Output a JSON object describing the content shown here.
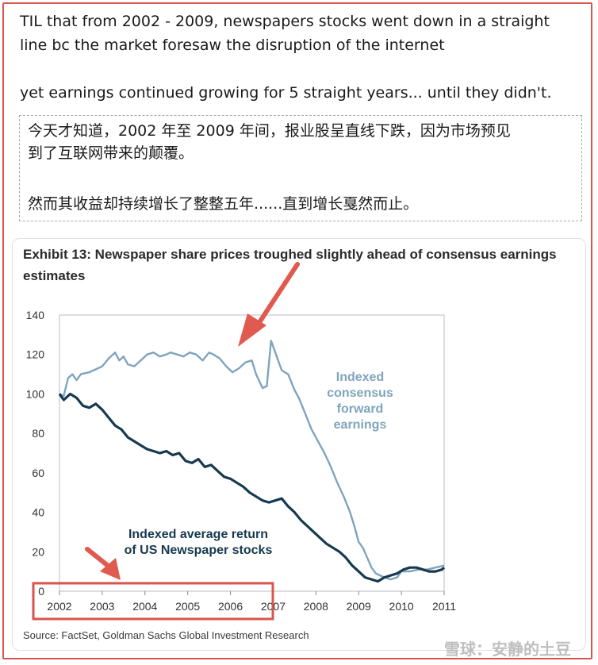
{
  "post": {
    "line1": "TIL that from 2002 - 2009, newspapers stocks went down in a straight",
    "line2": "line bc the market foresaw the disruption of the internet",
    "line3": "yet earnings continued growing for 5 straight years... until they didn't."
  },
  "translation": {
    "line1": "今天才知道，2002 年至 2009 年间，报业股呈直线下跌，因为市场预见",
    "line2": "到了互联网带来的颠覆。",
    "line3": "然而其收益却持续增长了整整五年......直到增长戛然而止。"
  },
  "chart_data": {
    "type": "line",
    "title": "Exhibit 13: Newspaper share prices troughed slightly ahead of consensus earnings estimates",
    "source": "Source: FactSet, Goldman Sachs Global Investment Research",
    "xlim": [
      2002,
      2011
    ],
    "ylim": [
      0,
      140
    ],
    "x_ticks": [
      "2002",
      "2003",
      "2004",
      "2005",
      "2006",
      "2007",
      "2008",
      "2009",
      "2010",
      "2011"
    ],
    "y_ticks": [
      "0",
      "20",
      "40",
      "60",
      "80",
      "100",
      "120",
      "140"
    ],
    "grid": false,
    "series": [
      {
        "name": "Indexed consensus forward earnings",
        "color": "#7fa4bd",
        "x": [
          2002.0,
          2002.1,
          2002.2,
          2002.3,
          2002.4,
          2002.5,
          2002.7,
          2002.9,
          2003.0,
          2003.15,
          2003.3,
          2003.4,
          2003.5,
          2003.6,
          2003.75,
          2003.9,
          2004.05,
          2004.2,
          2004.35,
          2004.5,
          2004.6,
          2004.75,
          2004.9,
          2005.05,
          2005.2,
          2005.35,
          2005.5,
          2005.6,
          2005.75,
          2005.9,
          2006.05,
          2006.2,
          2006.35,
          2006.5,
          2006.6,
          2006.75,
          2006.85,
          2006.95,
          2007.05,
          2007.2,
          2007.35,
          2007.5,
          2007.6,
          2007.75,
          2007.9,
          2008.05,
          2008.2,
          2008.35,
          2008.5,
          2008.65,
          2008.8,
          2008.9,
          2009.0,
          2009.1,
          2009.2,
          2009.3,
          2009.4,
          2009.5,
          2009.6,
          2009.75,
          2009.9,
          2010.0,
          2010.2,
          2010.4,
          2010.6,
          2010.8,
          2011.0
        ],
        "values": [
          100,
          99,
          108,
          110,
          107,
          110,
          111,
          113,
          114,
          118,
          121,
          117,
          119,
          115,
          114,
          117,
          120,
          121,
          119,
          120,
          121,
          120,
          119,
          121,
          120,
          117,
          121,
          120,
          118,
          114,
          111,
          113,
          116,
          117,
          110,
          103,
          104,
          127,
          121,
          112,
          110,
          102,
          98,
          90,
          82,
          76,
          70,
          63,
          55,
          48,
          40,
          33,
          25,
          22,
          17,
          12,
          9,
          8,
          7,
          6,
          7,
          10,
          10,
          11,
          11,
          12,
          13
        ]
      },
      {
        "name": "Indexed average return of US Newspaper stocks",
        "color": "#17394f",
        "x": [
          2002.0,
          2002.1,
          2002.25,
          2002.4,
          2002.55,
          2002.7,
          2002.85,
          2003.0,
          2003.15,
          2003.3,
          2003.45,
          2003.6,
          2003.75,
          2003.9,
          2004.05,
          2004.2,
          2004.35,
          2004.5,
          2004.65,
          2004.8,
          2004.95,
          2005.1,
          2005.25,
          2005.4,
          2005.55,
          2005.7,
          2005.85,
          2006.0,
          2006.15,
          2006.3,
          2006.45,
          2006.6,
          2006.75,
          2006.9,
          2007.05,
          2007.2,
          2007.35,
          2007.5,
          2007.65,
          2007.8,
          2007.95,
          2008.1,
          2008.25,
          2008.4,
          2008.55,
          2008.7,
          2008.85,
          2009.0,
          2009.15,
          2009.3,
          2009.45,
          2009.6,
          2009.75,
          2009.9,
          2010.05,
          2010.2,
          2010.35,
          2010.5,
          2010.65,
          2010.8,
          2010.95,
          2011.0
        ],
        "values": [
          100,
          97,
          100,
          98,
          94,
          93,
          95,
          92,
          88,
          84,
          82,
          78,
          76,
          74,
          72,
          71,
          70,
          71,
          69,
          70,
          66,
          65,
          67,
          63,
          64,
          61,
          58,
          57,
          55,
          53,
          50,
          48,
          46,
          45,
          46,
          47,
          43,
          40,
          36,
          33,
          30,
          27,
          24,
          22,
          20,
          17,
          13,
          10,
          7,
          6,
          5,
          7,
          8,
          9,
          11,
          12,
          12,
          11,
          10,
          10,
          11,
          12
        ]
      }
    ],
    "annotations": [
      {
        "text_lines": [
          "Indexed",
          "consensus",
          "forward",
          "earnings"
        ],
        "color": "#7fa4bd"
      },
      {
        "text_lines": [
          "Indexed average return",
          "of US Newspaper stocks"
        ],
        "color": "#17394f"
      }
    ]
  },
  "watermark": "雪球：安静的土豆"
}
